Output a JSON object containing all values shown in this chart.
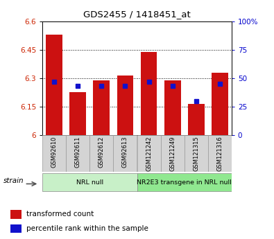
{
  "title": "GDS2455 / 1418451_at",
  "samples": [
    "GSM92610",
    "GSM92611",
    "GSM92612",
    "GSM92613",
    "GSM121242",
    "GSM121249",
    "GSM121315",
    "GSM121316"
  ],
  "red_values": [
    6.53,
    6.225,
    6.29,
    6.315,
    6.44,
    6.29,
    6.165,
    6.33
  ],
  "blue_values": [
    47,
    43,
    43,
    43,
    47,
    43,
    30,
    45
  ],
  "ylim_left": [
    6.0,
    6.6
  ],
  "ylim_right": [
    0,
    100
  ],
  "yticks_left": [
    6.0,
    6.15,
    6.3,
    6.45,
    6.6
  ],
  "ytick_labels_left": [
    "6",
    "6.15",
    "6.3",
    "6.45",
    "6.6"
  ],
  "yticks_right": [
    0,
    25,
    50,
    75,
    100
  ],
  "ytick_labels_right": [
    "0",
    "25",
    "50",
    "75",
    "100%"
  ],
  "groups": [
    {
      "label": "NRL null",
      "start": 0,
      "end": 4,
      "color": "#c8f0c8"
    },
    {
      "label": "NR2E3 transgene in NRL null",
      "start": 4,
      "end": 8,
      "color": "#90e890"
    }
  ],
  "bar_color": "#cc1111",
  "blue_color": "#1111cc",
  "bar_width": 0.7,
  "tick_label_color_left": "#cc2200",
  "tick_label_color_right": "#0000cc",
  "legend_red_label": "transformed count",
  "legend_blue_label": "percentile rank within the sample",
  "strain_label": "strain"
}
